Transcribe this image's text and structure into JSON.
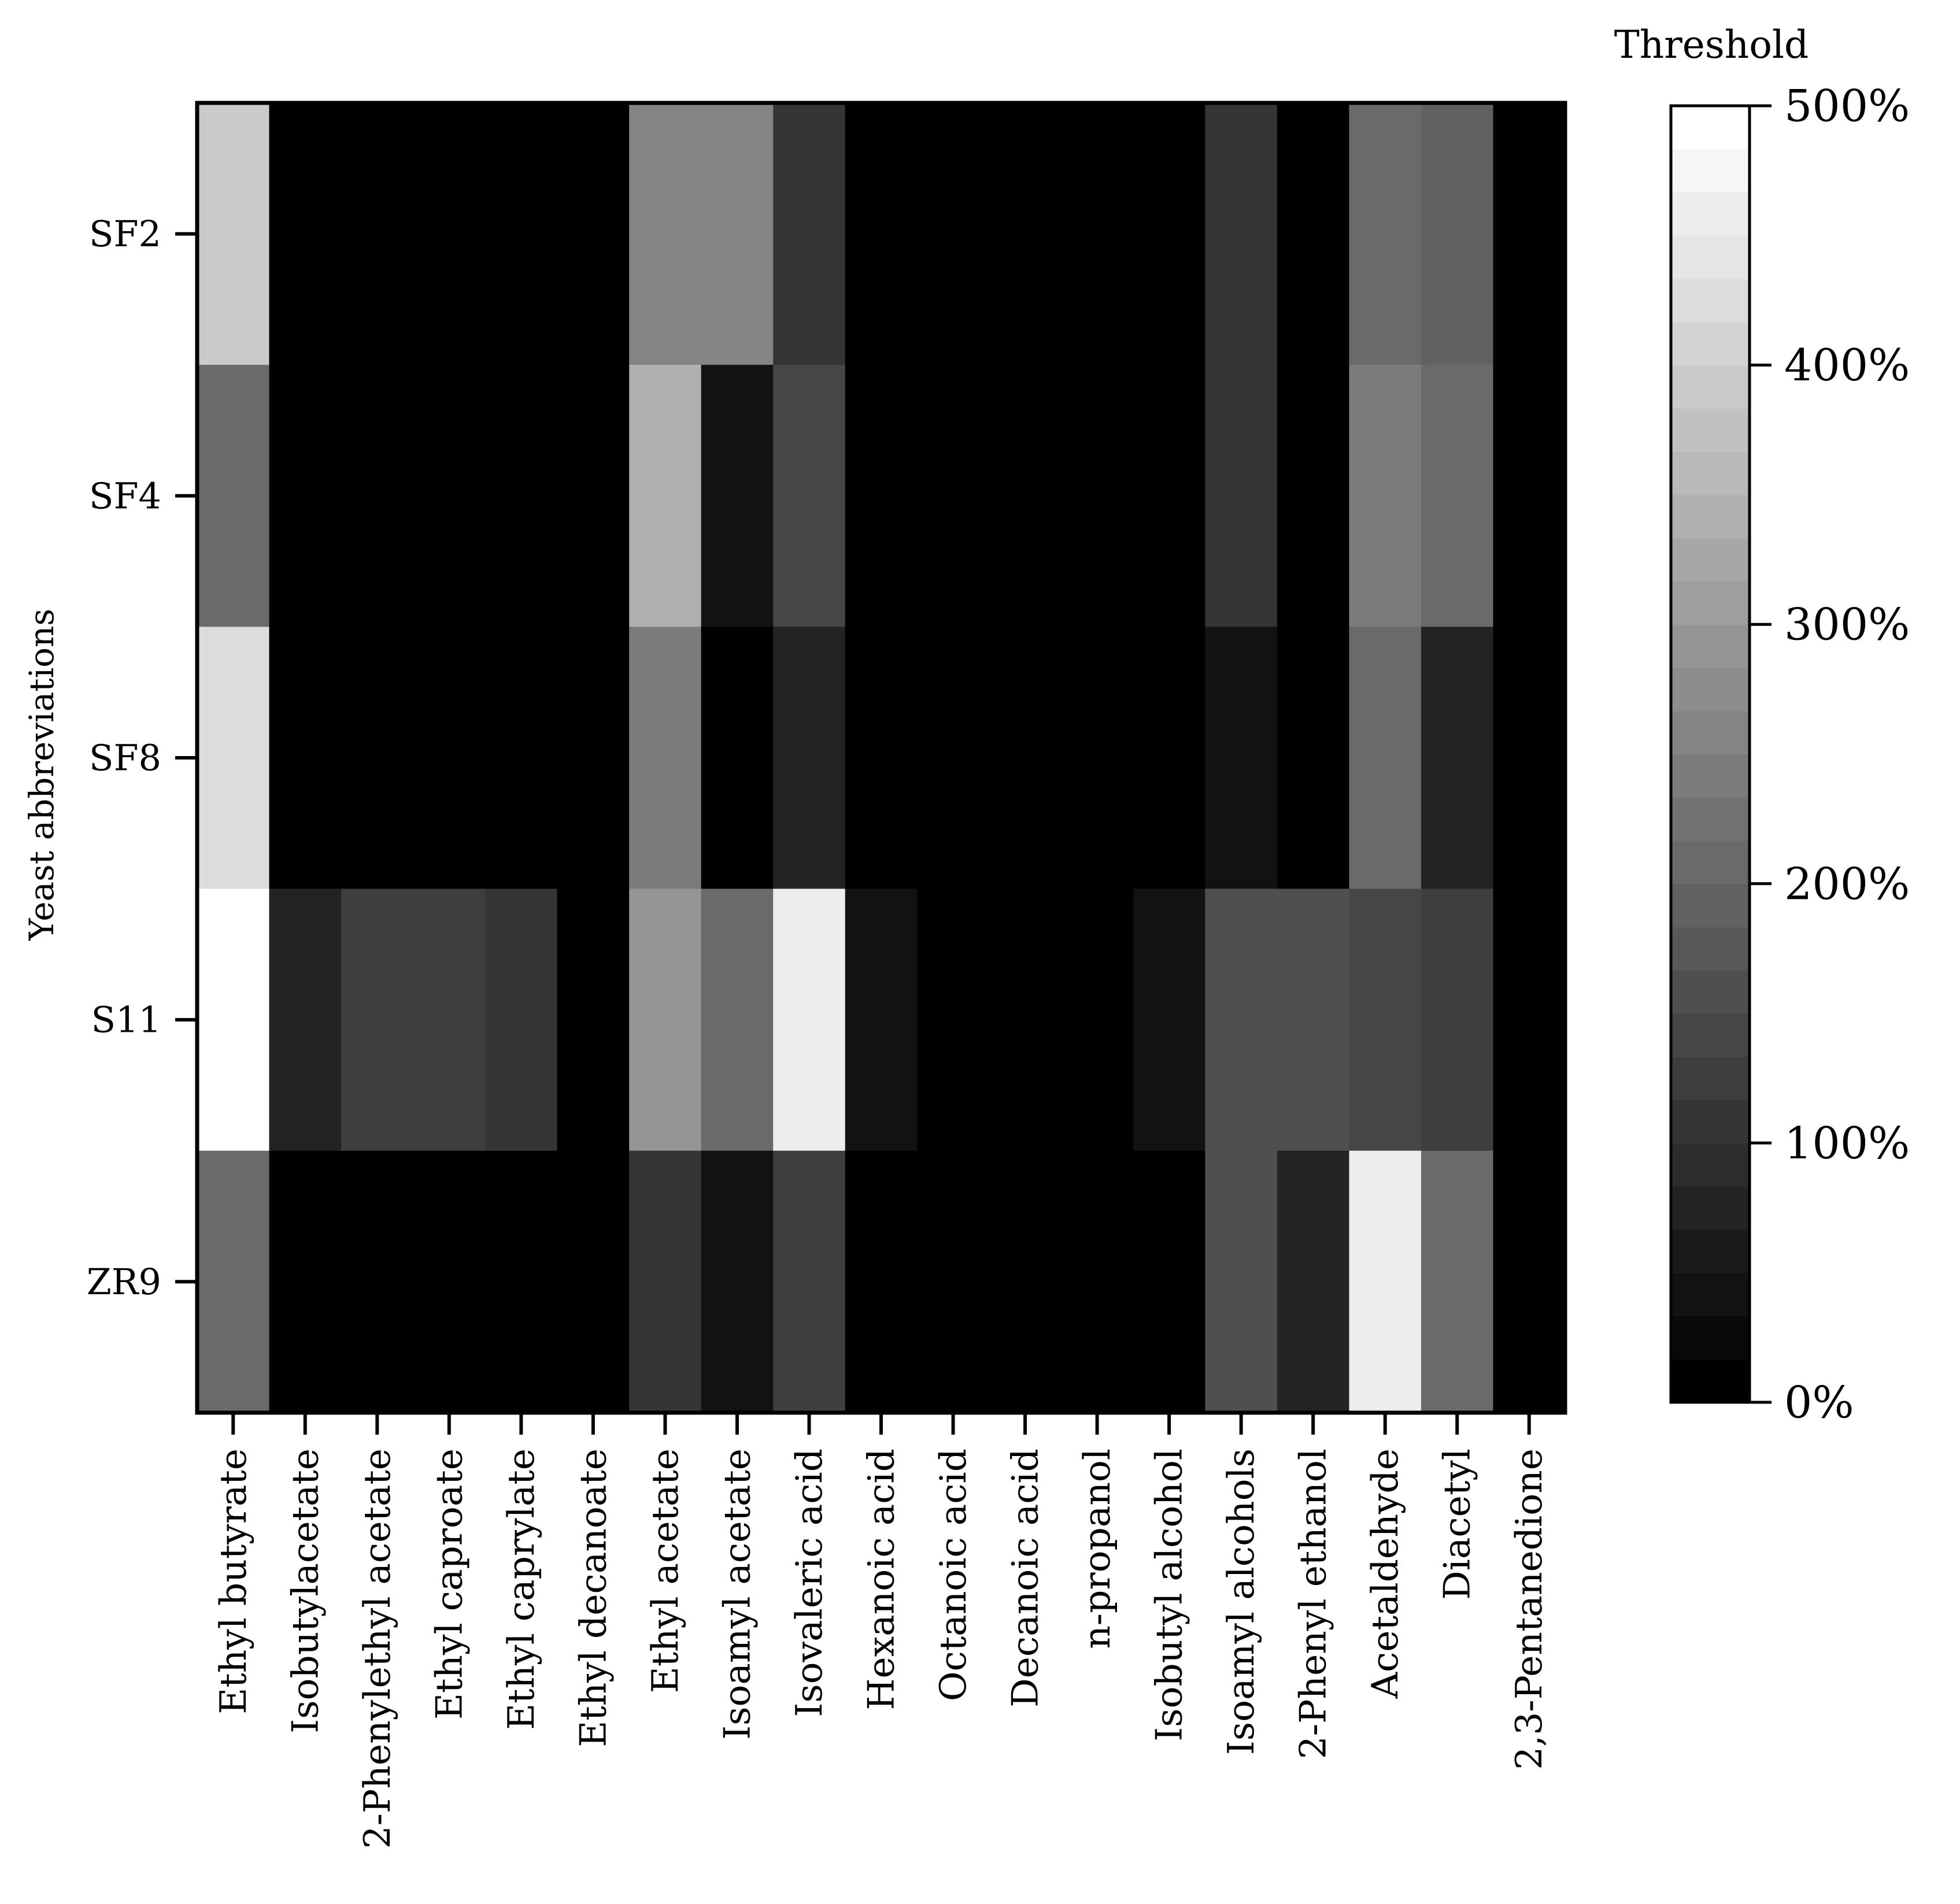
{
  "chart_data": {
    "type": "heatmap",
    "ylabel": "Yeast abbreviations",
    "rows": [
      "SF2",
      "SF4",
      "SF8",
      "S11",
      "ZR9"
    ],
    "columns": [
      "Ethyl butyrate",
      "Isobutylacetate",
      "2-Phenylethyl acetate",
      "Ethyl caproate",
      "Ethyl caprylate",
      "Ethyl decanoate",
      "Ethyl acetate",
      "Isoamyl acetate",
      "Isovaleric acid",
      "Hexanoic acid",
      "Octanoic acid",
      "Decanoic acid",
      "n-propanol",
      "Isobutyl alcohol",
      "Isoamyl alcohols",
      "2-Phenyl ethanol",
      "Acetaldehyde",
      "Diacetyl",
      "2,3-Pentanedione"
    ],
    "values": [
      [
        390,
        0,
        0,
        0,
        0,
        0,
        250,
        250,
        95,
        0,
        0,
        0,
        0,
        0,
        95,
        0,
        200,
        185,
        0
      ],
      [
        210,
        0,
        0,
        0,
        0,
        0,
        350,
        35,
        135,
        0,
        0,
        0,
        0,
        0,
        95,
        0,
        240,
        210,
        0
      ],
      [
        430,
        0,
        0,
        0,
        0,
        0,
        240,
        0,
        75,
        0,
        0,
        0,
        0,
        0,
        35,
        0,
        215,
        75,
        0
      ],
      [
        500,
        75,
        115,
        115,
        95,
        0,
        300,
        200,
        460,
        35,
        0,
        0,
        0,
        35,
        160,
        160,
        135,
        115,
        0
      ],
      [
        200,
        0,
        0,
        0,
        0,
        0,
        95,
        35,
        115,
        0,
        0,
        0,
        0,
        0,
        160,
        75,
        460,
        200,
        0
      ]
    ],
    "value_unit": "%",
    "colorbar": {
      "label": "Threshold",
      "range": [
        0,
        500
      ],
      "ticks": [
        "0%",
        "100%",
        "200%",
        "300%",
        "400%",
        "500%"
      ],
      "tick_values": [
        0,
        100,
        200,
        300,
        400,
        500
      ],
      "steps": 30,
      "colors": [
        "#000000",
        "#ffffff"
      ]
    }
  }
}
